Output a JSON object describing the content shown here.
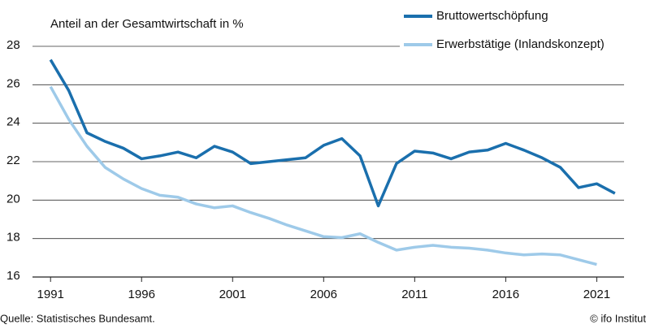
{
  "chart_data": {
    "type": "line",
    "y_label": "Anteil an der Gesamtwirtschaft in %",
    "source": "Quelle: Statistisches Bundesamt.",
    "credit": "© ifo Institut",
    "x": [
      1991,
      1992,
      1993,
      1994,
      1995,
      1996,
      1997,
      1998,
      1999,
      2000,
      2001,
      2002,
      2003,
      2004,
      2005,
      2006,
      2007,
      2008,
      2009,
      2010,
      2011,
      2012,
      2013,
      2014,
      2015,
      2016,
      2017,
      2018,
      2019,
      2020,
      2021,
      2022
    ],
    "series": [
      {
        "name": "Bruttowertschöpfung",
        "color": "#1a6fad",
        "values": [
          27.3,
          25.7,
          23.5,
          23.05,
          22.7,
          22.15,
          22.3,
          22.5,
          22.2,
          22.8,
          22.5,
          21.9,
          22.0,
          22.1,
          22.2,
          22.85,
          23.2,
          22.3,
          19.7,
          21.9,
          22.55,
          22.45,
          22.15,
          22.5,
          22.6,
          22.95,
          22.6,
          22.2,
          21.7,
          20.65,
          20.85,
          20.35
        ]
      },
      {
        "name": "Erwerbstätige (Inlandskonzept)",
        "color": "#9ecae9",
        "values": [
          25.9,
          24.2,
          22.8,
          21.7,
          21.1,
          20.6,
          20.25,
          20.15,
          19.8,
          19.6,
          19.7,
          19.35,
          19.05,
          18.7,
          18.4,
          18.1,
          18.05,
          18.25,
          17.8,
          17.4,
          17.55,
          17.65,
          17.55,
          17.5,
          17.4,
          17.25,
          17.15,
          17.2,
          17.15,
          16.9,
          16.65,
          null
        ]
      }
    ],
    "xlim": [
      1990.5,
      2022.5
    ],
    "xticks": [
      1991,
      1996,
      2001,
      2006,
      2011,
      2016,
      2021
    ],
    "ylim": [
      16,
      28
    ],
    "yticks": [
      16,
      18,
      20,
      22,
      24,
      26,
      28
    ],
    "grid": true
  }
}
